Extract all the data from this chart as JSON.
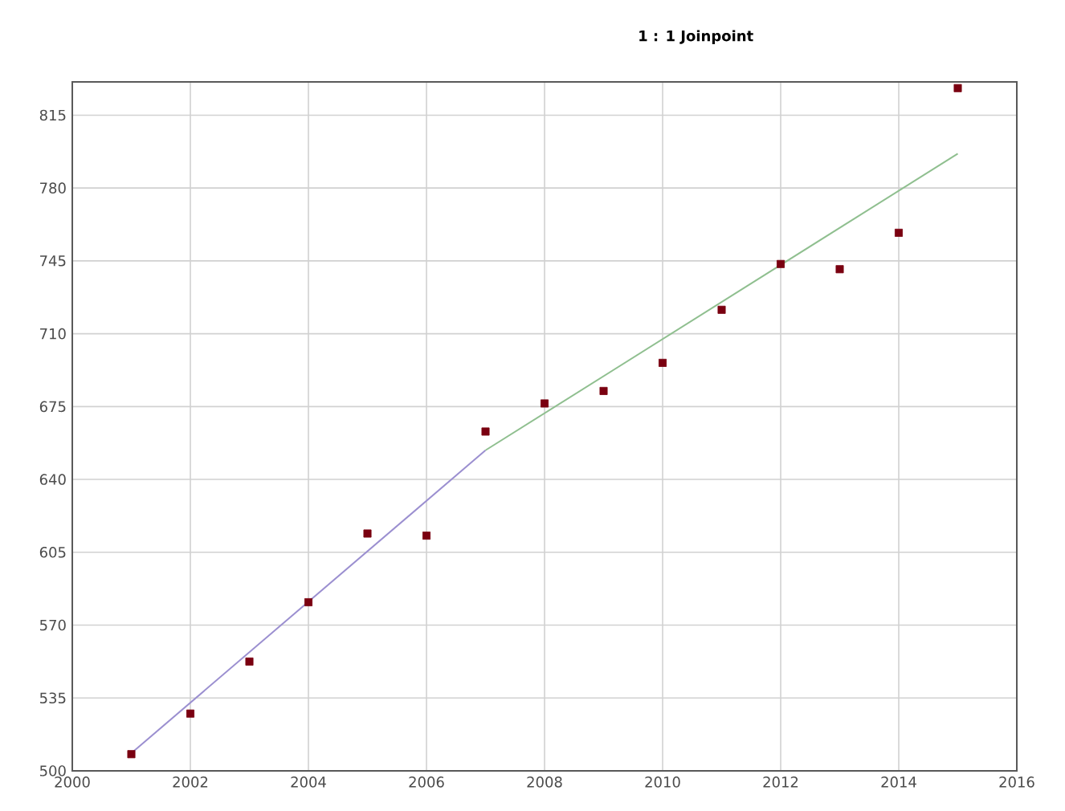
{
  "chart_data": {
    "type": "scatter",
    "title": "1 : 1 Joinpoint",
    "x": [
      2001,
      2002,
      2003,
      2004,
      2005,
      2006,
      2007,
      2008,
      2009,
      2010,
      2011,
      2012,
      2013,
      2014,
      2015
    ],
    "series": [
      {
        "color": "#7a0010",
        "marker": "square",
        "values": [
          508,
          527.5,
          552.5,
          581,
          614,
          613,
          663,
          676.5,
          682.5,
          696,
          721.5,
          743.5,
          741,
          758.5,
          828
        ]
      },
      {
        "type": "line",
        "color": "#9b8fd0",
        "marker": "none",
        "x": [
          2001,
          2007
        ],
        "values": [
          508.5,
          654
        ]
      },
      {
        "type": "line",
        "color": "#8fbf8f",
        "marker": "none",
        "x": [
          2007,
          2015
        ],
        "values": [
          654,
          796.5
        ]
      }
    ],
    "xlim": [
      2000,
      2016
    ],
    "xticks": [
      2000,
      2002,
      2004,
      2006,
      2008,
      2010,
      2012,
      2014,
      2016
    ],
    "ylim": [
      500,
      831
    ],
    "yticks": [
      500,
      535,
      570,
      605,
      640,
      675,
      710,
      745,
      780,
      815
    ],
    "grid": true
  }
}
